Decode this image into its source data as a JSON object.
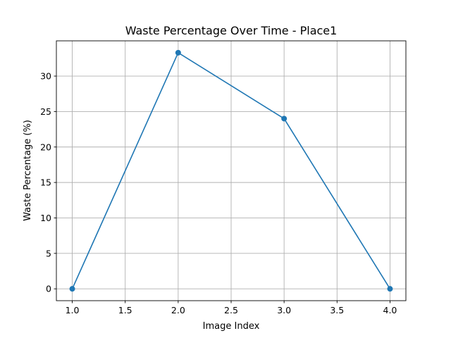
{
  "chart_data": {
    "type": "line",
    "title": "Waste Percentage Over Time - Place1",
    "xlabel": "Image Index",
    "ylabel": "Waste Percentage (%)",
    "x": [
      1,
      2,
      3,
      4
    ],
    "y": [
      0,
      33.3,
      24.0,
      0
    ],
    "xlim": [
      0.85,
      4.15
    ],
    "ylim": [
      -1.67,
      34.97
    ],
    "xticks": [
      1.0,
      1.5,
      2.0,
      2.5,
      3.0,
      3.5,
      4.0
    ],
    "xtick_labels": [
      "1.0",
      "1.5",
      "2.0",
      "2.5",
      "3.0",
      "3.5",
      "4.0"
    ],
    "yticks": [
      0,
      5,
      10,
      15,
      20,
      25,
      30
    ],
    "ytick_labels": [
      "0",
      "5",
      "10",
      "15",
      "20",
      "25",
      "30"
    ],
    "grid": true,
    "marker": "circle",
    "line_color": "#1f77b4"
  }
}
